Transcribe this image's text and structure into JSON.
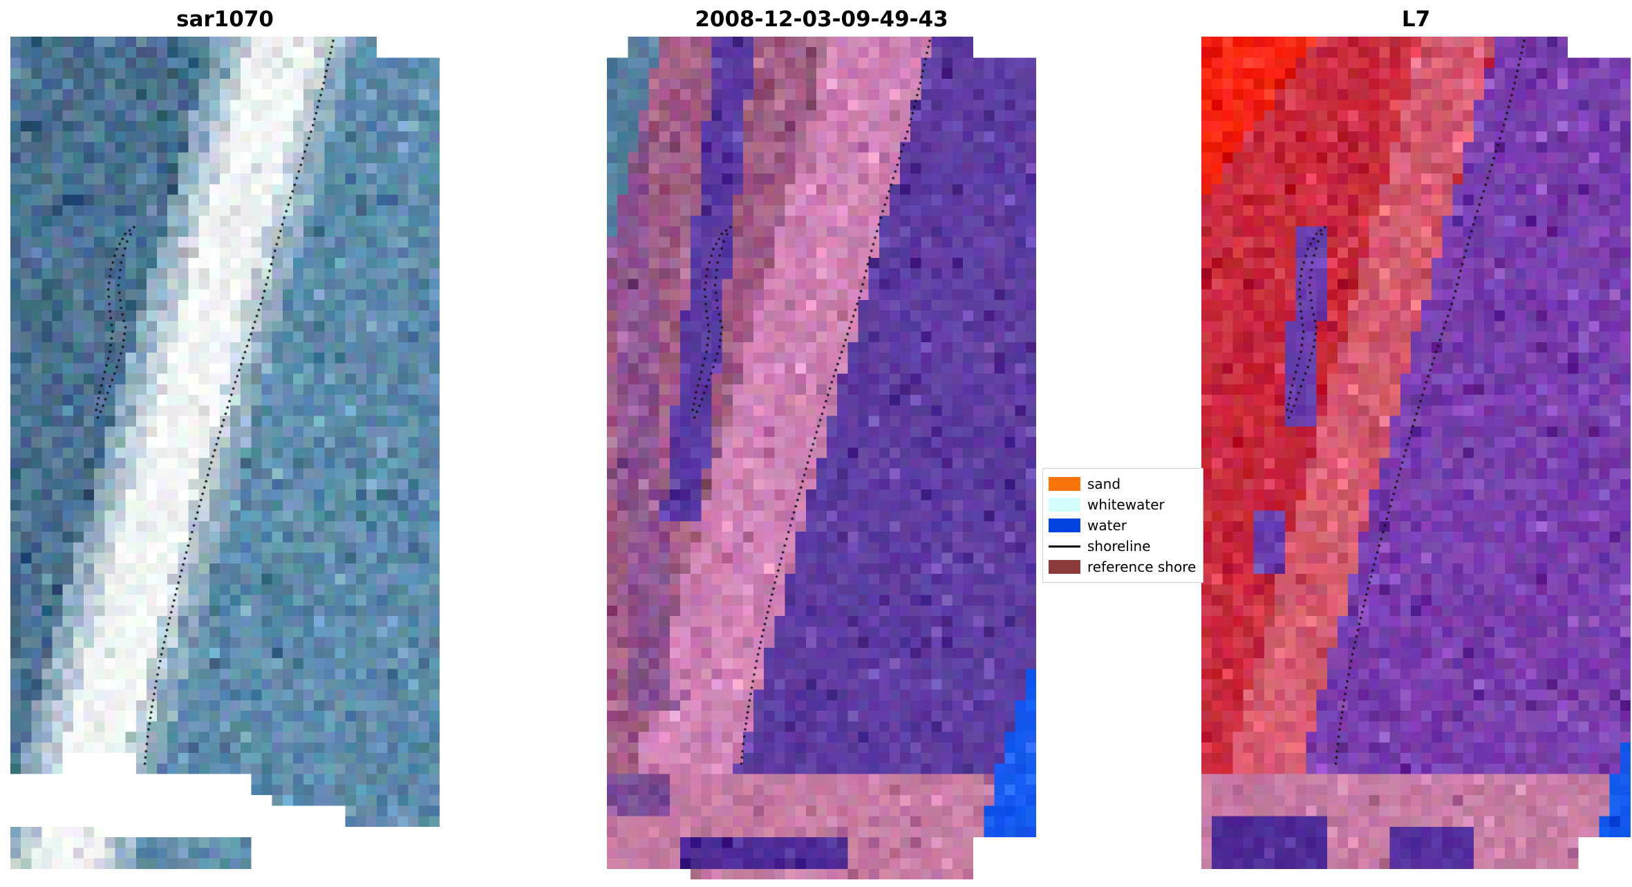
{
  "page": {
    "background": "#ffffff"
  },
  "panels": [
    {
      "title": "sar1070",
      "render": {
        "base": [
          0.64,
          -0.524
        ],
        "cuts": [
          [
            0.845,
            0,
            1.01,
            0.028
          ],
          [
            0.11,
            0.845,
            0.3,
            0.9
          ],
          [
            0,
            0.878,
            0.56,
            0.935
          ],
          [
            0.36,
            0.899,
            0.62,
            0.935
          ],
          [
            0.6,
            0.908,
            0.79,
            0.935
          ],
          [
            0.21,
            0.935,
            1.01,
            0.952
          ],
          [
            0.56,
            0.944,
            1.01,
            1.01
          ],
          [
            0.21,
            0.988,
            0.56,
            1.01
          ],
          [
            0,
            0.985,
            0.21,
            1.01
          ]
        ],
        "zones": [
          {
            "k": "band",
            "a": 0.64,
            "b": -0.524,
            "w": 0.075,
            "c": "#f2f5f5",
            "n": 9
          },
          {
            "k": "band",
            "a": 0.64,
            "b": -0.524,
            "w": 0.115,
            "c": "#c2d1d9",
            "n": 15
          },
          {
            "k": "band",
            "a": 0.64,
            "b": -0.524,
            "w": 0.165,
            "c": "#8fadbf",
            "n": 16
          },
          {
            "k": "left",
            "c": "#4b7190",
            "n": 17
          },
          {
            "k": "right",
            "c": "#5e8cab",
            "n": 16
          }
        ]
      }
    },
    {
      "title": "2008-12-03-09-49-43",
      "render": {
        "base": [
          0.64,
          -0.524
        ],
        "cuts": [
          [
            0,
            0,
            0.05,
            0.031
          ],
          [
            0.855,
            0,
            1.01,
            0.027
          ],
          [
            0.855,
            0.944,
            1.01,
            1.01
          ],
          [
            0,
            0.988,
            0.183,
            1.01
          ]
        ],
        "zones": [
          {
            "k": "wedge",
            "v0": 0.75,
            "v1": 0.945,
            "u0": 0.985,
            "s": 0.6,
            "c": "#1459ee",
            "n": 7
          },
          {
            "k": "rect",
            "r": [
              0.17,
              0.952,
              0.56,
              0.99
            ],
            "c": "#4e2c97",
            "n": 8
          },
          {
            "k": "rect",
            "r": [
              0,
              0.878,
              0.14,
              0.928
            ],
            "c": "#7a4f96",
            "n": 12
          },
          {
            "k": "hstrip",
            "v0": 0.876,
            "c": "#c77ca4",
            "n": 11
          },
          {
            "k": "tri",
            "p": [
              0.13,
              -0.5
            ],
            "c": "#5680a0",
            "n": 13
          },
          {
            "k": "band",
            "a": 0.3,
            "b": -0.22,
            "w": 0.045,
            "v1": 0.58,
            "c": "#5b3aa2",
            "n": 10
          },
          {
            "k": "band",
            "a": 0.03,
            "b": 0.1,
            "w": 0.05,
            "v1": 0.8,
            "c": "#8f5590",
            "n": 15
          },
          {
            "k": "band",
            "a": 0.64,
            "b": -0.524,
            "w": 0.12,
            "c": "#cf82b4",
            "n": 13
          },
          {
            "k": "left",
            "c": "#a05c84",
            "n": 16
          },
          {
            "k": "right",
            "c": "#5e3da1",
            "n": 10
          }
        ]
      }
    },
    {
      "title": "L7",
      "render": {
        "base": [
          0.688,
          -0.535
        ],
        "cuts": [
          [
            0.845,
            0,
            1.01,
            0.027
          ],
          [
            0.885,
            0.944,
            1.01,
            1.01
          ],
          [
            0.88,
            0.972,
            1.01,
            1.01
          ],
          [
            0,
            0.988,
            1.01,
            1.01
          ]
        ],
        "zones": [
          {
            "k": "wedge",
            "v0": 0.83,
            "v1": 0.945,
            "u0": 0.99,
            "s": 0.55,
            "c": "#1459ee",
            "n": 7
          },
          {
            "k": "rect",
            "r": [
              0.02,
              0.93,
              0.3,
              0.988
            ],
            "c": "#4e2c97",
            "n": 8
          },
          {
            "k": "rect",
            "r": [
              0.44,
              0.938,
              0.63,
              0.988
            ],
            "c": "#552f9e",
            "n": 8
          },
          {
            "k": "hstrip",
            "v0": 0.876,
            "c": "#c77ca4",
            "n": 11
          },
          {
            "k": "tri",
            "p": [
              0.27,
              -1.35
            ],
            "c": "#f52414",
            "n": 14
          },
          {
            "k": "rect",
            "r": [
              0.22,
              0.225,
              0.3,
              0.335
            ],
            "c": "#6a3fae",
            "n": 11
          },
          {
            "k": "rect",
            "r": [
              0.19,
              0.335,
              0.27,
              0.46
            ],
            "c": "#6a3fae",
            "n": 11
          },
          {
            "k": "rect",
            "r": [
              0.13,
              0.56,
              0.2,
              0.635
            ],
            "c": "#6a3fae",
            "n": 11
          },
          {
            "k": "band",
            "a": 0.6,
            "b": -0.52,
            "w": 0.085,
            "c": "#d65b70",
            "n": 14
          },
          {
            "k": "left",
            "c": "#c92a3e",
            "n": 14
          },
          {
            "k": "right",
            "c": "#7a3fae",
            "n": 13
          }
        ]
      }
    }
  ],
  "legend": {
    "entries": [
      {
        "label": "sand",
        "color": "#f97306",
        "type": "patch"
      },
      {
        "label": "whitewater",
        "color": "#d2fefe",
        "type": "patch"
      },
      {
        "label": "water",
        "color": "#0343df",
        "type": "patch"
      },
      {
        "label": "shoreline",
        "color": "#000000",
        "type": "line"
      },
      {
        "label": "reference shore",
        "color": "#8b3a3a",
        "type": "patch"
      }
    ]
  },
  "shoreline": {
    "main": [
      [
        0.752,
        0.005
      ],
      [
        0.73,
        0.055
      ],
      [
        0.705,
        0.105
      ],
      [
        0.672,
        0.16
      ],
      [
        0.638,
        0.215
      ],
      [
        0.612,
        0.262
      ],
      [
        0.588,
        0.31
      ],
      [
        0.556,
        0.36
      ],
      [
        0.524,
        0.41
      ],
      [
        0.497,
        0.455
      ],
      [
        0.472,
        0.498
      ],
      [
        0.452,
        0.535
      ],
      [
        0.432,
        0.572
      ],
      [
        0.41,
        0.612
      ],
      [
        0.388,
        0.655
      ],
      [
        0.368,
        0.697
      ],
      [
        0.352,
        0.733
      ],
      [
        0.34,
        0.765
      ],
      [
        0.33,
        0.795
      ],
      [
        0.322,
        0.822
      ],
      [
        0.316,
        0.848
      ],
      [
        0.312,
        0.87
      ]
    ],
    "loop": [
      [
        0.288,
        0.226
      ],
      [
        0.272,
        0.243
      ],
      [
        0.258,
        0.268
      ],
      [
        0.252,
        0.295
      ],
      [
        0.258,
        0.322
      ],
      [
        0.268,
        0.345
      ],
      [
        0.262,
        0.368
      ],
      [
        0.248,
        0.392
      ],
      [
        0.232,
        0.415
      ],
      [
        0.216,
        0.438
      ],
      [
        0.204,
        0.452
      ],
      [
        0.2,
        0.443
      ],
      [
        0.208,
        0.422
      ],
      [
        0.22,
        0.398
      ],
      [
        0.232,
        0.374
      ],
      [
        0.238,
        0.35
      ],
      [
        0.232,
        0.326
      ],
      [
        0.228,
        0.3
      ],
      [
        0.234,
        0.276
      ],
      [
        0.248,
        0.252
      ],
      [
        0.268,
        0.234
      ],
      [
        0.288,
        0.226
      ]
    ]
  },
  "chart_data": [
    {
      "type": "heatmap",
      "title": "sar1070",
      "description": "SAR backscatter image rendered in blue-gray speckle with a bright white diagonal sand/beach band running from top-center to bottom-left; dotted black detected shoreline follows the right edge of the band; small closed dotted contour in the upper-left-middle; irregular white no-data masks at top-right corner and bottom-left, with two detached image strips at the bottom.",
      "legend_position": "none"
    },
    {
      "type": "heatmap",
      "title": "2008-12-03-09-49-43",
      "description": "Classified scene: mauve/rose reference-shore region on the left with a dark purple elongated patch, pink diagonal sand band, large dark purple water region on the right, pink bottom strip with dark purple blob, bright blue water wedge at lower right, steel-blue sliver at top-left, dotted black shoreline and closed dotted contour.",
      "legend_position": "right of panel"
    },
    {
      "type": "heatmap",
      "title": "L7",
      "description": "Landsat-7 false-colour composite: bright red patch at top-left, crimson red land/sand occupying the left half with a lighter rose diagonal band, violet-purple water on the right with small purple blobs, pink bottom strip with dark purple blobs, blue wedge at lower-right, dotted black shoreline and closed dotted contour.",
      "legend_position": "none"
    }
  ]
}
